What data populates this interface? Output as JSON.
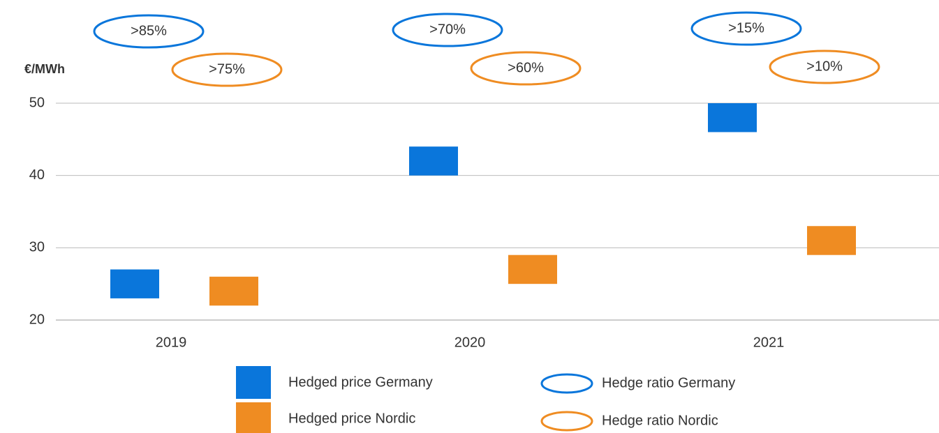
{
  "chart_data": {
    "type": "floating_bar",
    "y_label": "€/MWh",
    "categories": [
      "2019",
      "2020",
      "2021"
    ],
    "series": [
      {
        "name": "Hedged price Germany",
        "color": "#0a76db",
        "low": [
          23,
          40,
          46
        ],
        "high": [
          27,
          44,
          50
        ]
      },
      {
        "name": "Hedged price Nordic",
        "color": "#ef8c22",
        "low": [
          22,
          25,
          29
        ],
        "high": [
          26,
          29,
          33
        ]
      }
    ],
    "annotations": [
      {
        "name": "Hedge ratio Germany",
        "color": "#0a76db",
        "labels": [
          ">85%",
          ">70%",
          ">15%"
        ]
      },
      {
        "name": "Hedge ratio Nordic",
        "color": "#ef8c22",
        "labels": [
          ">75%",
          ">60%",
          ">10%"
        ]
      }
    ],
    "ylim": [
      20,
      50
    ],
    "yticks": [
      20,
      30,
      40,
      50
    ],
    "grid": true
  }
}
